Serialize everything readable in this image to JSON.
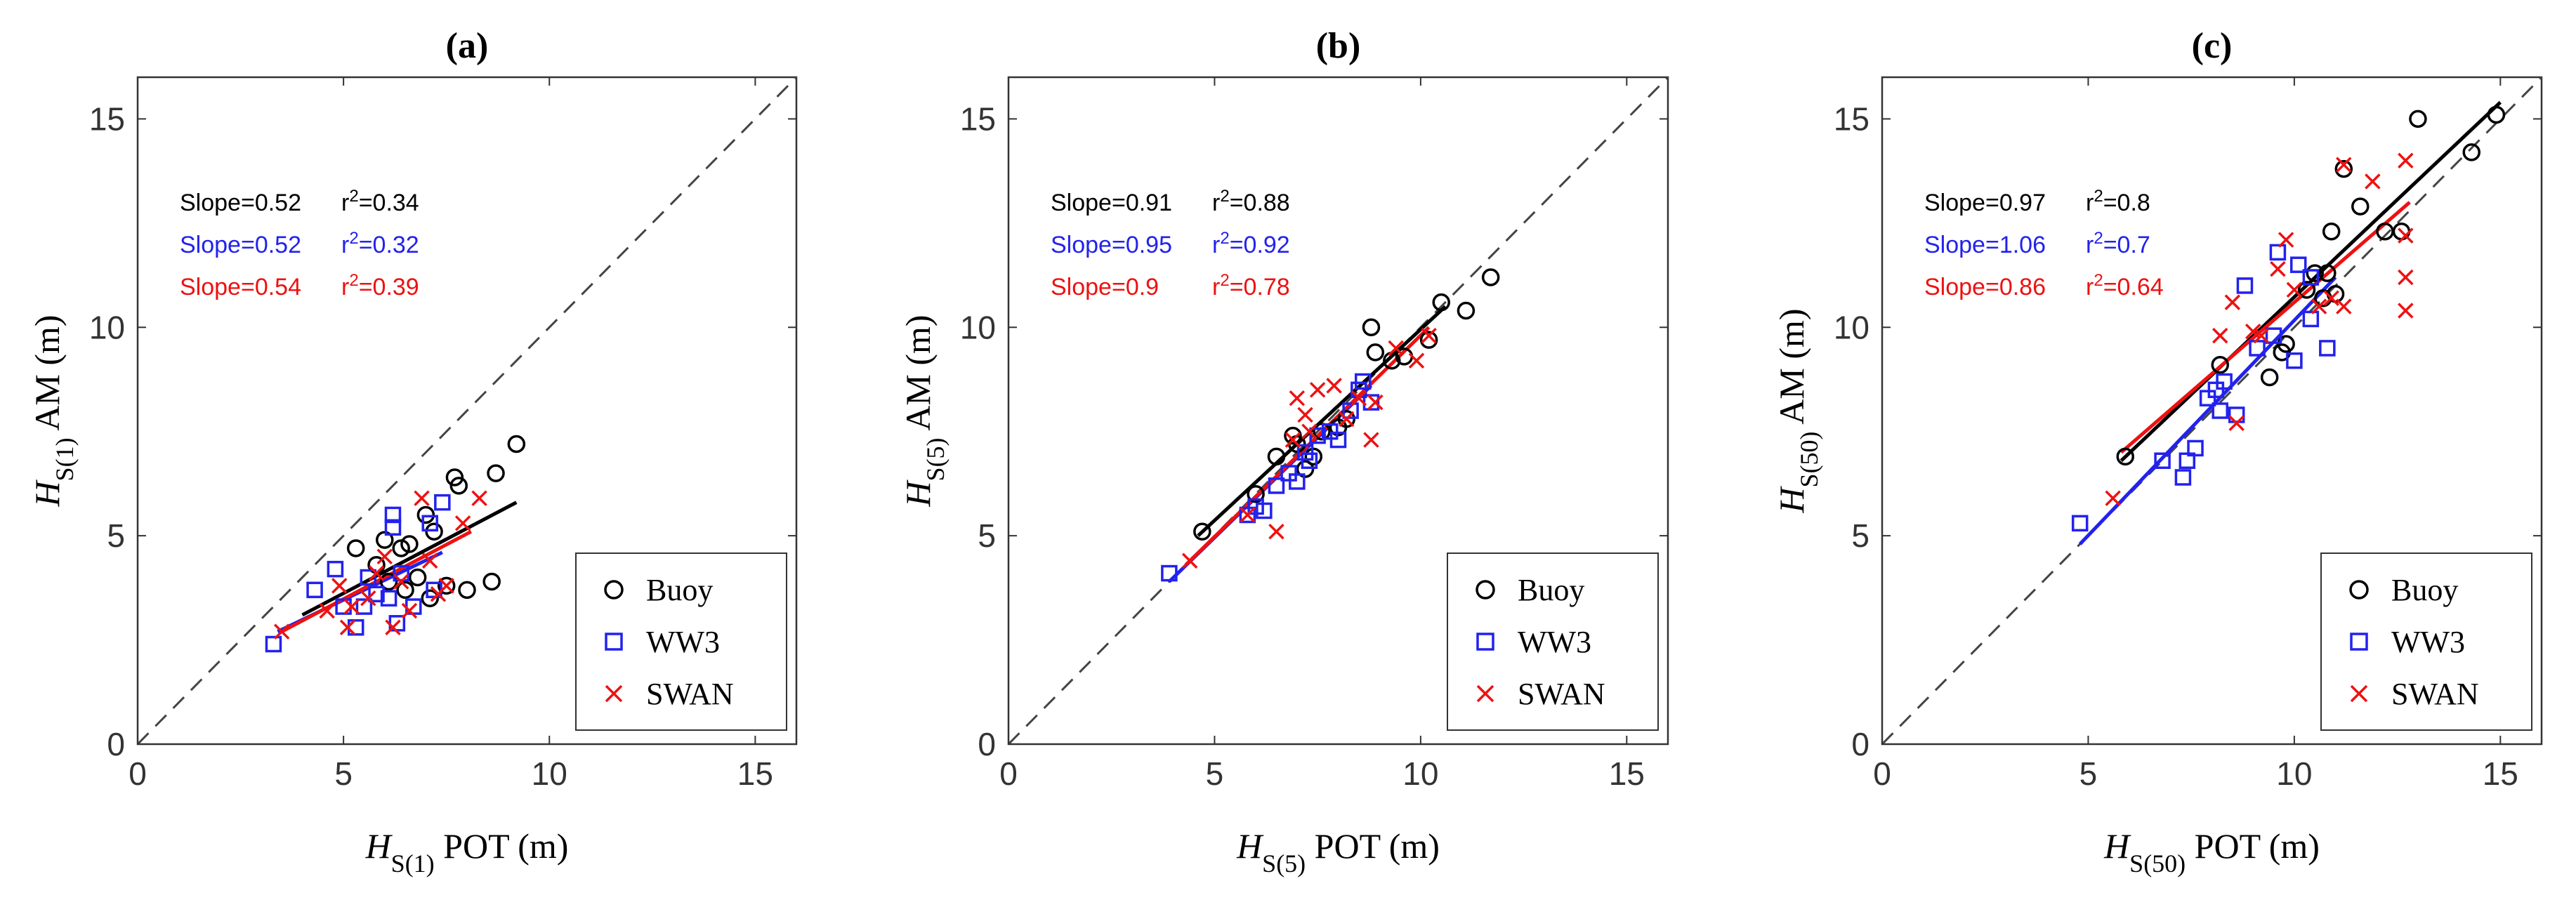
{
  "chart_data": [
    {
      "type": "scatter",
      "panel_title": "(a)",
      "xlabel": {
        "symbol": "H",
        "sub": "S(1)",
        "suffix": " POT (m)"
      },
      "ylabel": {
        "symbol": "H",
        "sub": "S(1)",
        "suffix": " AM (m)"
      },
      "xlim": [
        0,
        16
      ],
      "ylim": [
        0,
        16
      ],
      "xticks": [
        "0",
        "5",
        "10",
        "15"
      ],
      "yticks": [
        "0",
        "5",
        "10",
        "15"
      ],
      "reference_line": "1:1 dashed",
      "legend": [
        "Buoy",
        "WW3",
        "SWAN"
      ],
      "legend_position": "bottom-right",
      "stats": [
        {
          "series": "Buoy",
          "slope": "Slope=0.52",
          "r2_prefix": "r",
          "r2_sup": "2",
          "r2_value": "=0.34"
        },
        {
          "series": "WW3",
          "slope": "Slope=0.52",
          "r2_prefix": "r",
          "r2_sup": "2",
          "r2_value": "=0.32"
        },
        {
          "series": "SWAN",
          "slope": "Slope=0.54",
          "r2_prefix": "r",
          "r2_sup": "2",
          "r2_value": "=0.39"
        }
      ],
      "series": [
        {
          "name": "Buoy",
          "marker": "circle",
          "color": "#000000",
          "fit": [
            [
              4.0,
              3.1
            ],
            [
              9.2,
              5.8
            ]
          ],
          "points": [
            [
              5.3,
              4.7
            ],
            [
              5.8,
              4.3
            ],
            [
              6.0,
              4.9
            ],
            [
              6.4,
              4.7
            ],
            [
              6.6,
              4.8
            ],
            [
              6.1,
              3.9
            ],
            [
              6.5,
              3.7
            ],
            [
              7.0,
              5.5
            ],
            [
              7.2,
              5.1
            ],
            [
              7.5,
              3.8
            ],
            [
              7.7,
              6.4
            ],
            [
              7.8,
              6.2
            ],
            [
              8.0,
              3.7
            ],
            [
              8.6,
              3.9
            ],
            [
              8.7,
              6.5
            ],
            [
              9.2,
              7.2
            ],
            [
              7.1,
              3.5
            ],
            [
              6.8,
              4.0
            ]
          ]
        },
        {
          "name": "WW3",
          "marker": "square",
          "color": "#2222ee",
          "fit": [
            [
              3.4,
              2.7
            ],
            [
              7.4,
              4.6
            ]
          ],
          "points": [
            [
              3.3,
              2.4
            ],
            [
              4.3,
              3.7
            ],
            [
              4.8,
              4.2
            ],
            [
              5.0,
              3.3
            ],
            [
              5.3,
              2.8
            ],
            [
              5.6,
              4.0
            ],
            [
              5.8,
              3.6
            ],
            [
              6.1,
              3.5
            ],
            [
              6.2,
              5.2
            ],
            [
              6.2,
              5.5
            ],
            [
              6.3,
              2.9
            ],
            [
              6.7,
              3.3
            ],
            [
              7.2,
              3.7
            ],
            [
              7.4,
              5.8
            ],
            [
              7.1,
              5.3
            ],
            [
              5.5,
              3.3
            ],
            [
              6.4,
              4.1
            ]
          ]
        },
        {
          "name": "SWAN",
          "marker": "cross",
          "color": "#ee1111",
          "fit": [
            [
              3.5,
              2.7
            ],
            [
              8.1,
              5.1
            ]
          ],
          "points": [
            [
              3.5,
              2.7
            ],
            [
              4.6,
              3.2
            ],
            [
              4.9,
              3.8
            ],
            [
              5.2,
              3.3
            ],
            [
              5.1,
              2.8
            ],
            [
              5.6,
              3.5
            ],
            [
              6.0,
              4.5
            ],
            [
              6.2,
              2.8
            ],
            [
              6.6,
              3.2
            ],
            [
              6.9,
              5.9
            ],
            [
              7.1,
              4.4
            ],
            [
              7.3,
              3.6
            ],
            [
              7.5,
              3.8
            ],
            [
              7.9,
              5.3
            ],
            [
              8.3,
              5.9
            ],
            [
              5.8,
              4.1
            ],
            [
              6.4,
              3.9
            ]
          ]
        }
      ]
    },
    {
      "type": "scatter",
      "panel_title": "(b)",
      "xlabel": {
        "symbol": "H",
        "sub": "S(5)",
        "suffix": " POT (m)"
      },
      "ylabel": {
        "symbol": "H",
        "sub": "S(5)",
        "suffix": " AM (m)"
      },
      "xlim": [
        0,
        16
      ],
      "ylim": [
        0,
        16
      ],
      "xticks": [
        "0",
        "5",
        "10",
        "15"
      ],
      "yticks": [
        "0",
        "5",
        "10",
        "15"
      ],
      "reference_line": "1:1 dashed",
      "legend": [
        "Buoy",
        "WW3",
        "SWAN"
      ],
      "legend_position": "bottom-right",
      "stats": [
        {
          "series": "Buoy",
          "slope": "Slope=0.91",
          "r2_prefix": "r",
          "r2_sup": "2",
          "r2_value": "=0.88"
        },
        {
          "series": "WW3",
          "slope": "Slope=0.95",
          "r2_prefix": "r",
          "r2_sup": "2",
          "r2_value": "=0.92"
        },
        {
          "series": "SWAN",
          "slope": "Slope=0.9",
          "r2_prefix": "r",
          "r2_sup": "2",
          "r2_value": "=0.78"
        }
      ],
      "series": [
        {
          "name": "Buoy",
          "marker": "circle",
          "color": "#000000",
          "fit": [
            [
              4.6,
              5.0
            ],
            [
              10.6,
              10.5
            ]
          ],
          "points": [
            [
              4.7,
              5.1
            ],
            [
              6.0,
              6.0
            ],
            [
              6.5,
              6.9
            ],
            [
              6.9,
              7.4
            ],
            [
              7.2,
              6.6
            ],
            [
              7.4,
              6.9
            ],
            [
              7.6,
              7.5
            ],
            [
              8.0,
              7.6
            ],
            [
              8.2,
              7.8
            ],
            [
              8.8,
              10.0
            ],
            [
              8.9,
              9.4
            ],
            [
              9.3,
              9.2
            ],
            [
              9.6,
              9.3
            ],
            [
              10.2,
              9.7
            ],
            [
              10.5,
              10.6
            ],
            [
              11.1,
              10.4
            ],
            [
              11.7,
              11.2
            ],
            [
              7.0,
              7.2
            ]
          ]
        },
        {
          "name": "WW3",
          "marker": "square",
          "color": "#2222ee",
          "fit": [
            [
              3.9,
              3.9
            ],
            [
              8.8,
              8.6
            ]
          ],
          "points": [
            [
              3.9,
              4.1
            ],
            [
              5.8,
              5.5
            ],
            [
              6.0,
              5.7
            ],
            [
              6.2,
              5.6
            ],
            [
              6.5,
              6.2
            ],
            [
              6.8,
              6.5
            ],
            [
              7.0,
              6.3
            ],
            [
              7.2,
              7.0
            ],
            [
              7.5,
              7.4
            ],
            [
              7.8,
              7.5
            ],
            [
              8.0,
              7.3
            ],
            [
              8.3,
              8.0
            ],
            [
              8.5,
              8.5
            ],
            [
              8.6,
              8.7
            ],
            [
              8.8,
              8.2
            ],
            [
              7.3,
              6.8
            ]
          ]
        },
        {
          "name": "SWAN",
          "marker": "cross",
          "color": "#ee1111",
          "fit": [
            [
              4.3,
              4.3
            ],
            [
              10.2,
              10.0
            ]
          ],
          "points": [
            [
              4.4,
              4.4
            ],
            [
              5.8,
              5.5
            ],
            [
              6.5,
              5.1
            ],
            [
              6.9,
              7.3
            ],
            [
              7.0,
              8.3
            ],
            [
              7.3,
              7.5
            ],
            [
              7.5,
              8.5
            ],
            [
              7.9,
              8.6
            ],
            [
              8.2,
              7.8
            ],
            [
              8.5,
              8.3
            ],
            [
              8.8,
              7.3
            ],
            [
              8.9,
              8.2
            ],
            [
              9.4,
              9.5
            ],
            [
              9.9,
              9.2
            ],
            [
              10.2,
              9.8
            ],
            [
              7.2,
              7.9
            ]
          ]
        }
      ]
    },
    {
      "type": "scatter",
      "panel_title": "(c)",
      "xlabel": {
        "symbol": "H",
        "sub": "S(50)",
        "suffix": " POT (m)"
      },
      "ylabel": {
        "symbol": "H",
        "sub": "S(50)",
        "suffix": " AM (m)"
      },
      "xlim": [
        0,
        16
      ],
      "ylim": [
        0,
        16
      ],
      "xticks": [
        "0",
        "5",
        "10",
        "15"
      ],
      "yticks": [
        "0",
        "5",
        "10",
        "15"
      ],
      "reference_line": "1:1 dashed",
      "legend": [
        "Buoy",
        "WW3",
        "SWAN"
      ],
      "legend_position": "bottom-right",
      "stats": [
        {
          "series": "Buoy",
          "slope": "Slope=0.97",
          "r2_prefix": "r",
          "r2_sup": "2",
          "r2_value": "=0.8"
        },
        {
          "series": "WW3",
          "slope": "Slope=1.06",
          "r2_prefix": "r",
          "r2_sup": "2",
          "r2_value": "=0.7"
        },
        {
          "series": "SWAN",
          "slope": "Slope=0.86",
          "r2_prefix": "r",
          "r2_sup": "2",
          "r2_value": "=0.64"
        }
      ],
      "series": [
        {
          "name": "Buoy",
          "marker": "circle",
          "color": "#000000",
          "fit": [
            [
              5.8,
              6.8
            ],
            [
              15.0,
              15.4
            ]
          ],
          "points": [
            [
              5.9,
              6.9
            ],
            [
              8.2,
              9.1
            ],
            [
              9.4,
              8.8
            ],
            [
              9.8,
              9.6
            ],
            [
              10.3,
              10.9
            ],
            [
              10.5,
              11.3
            ],
            [
              10.7,
              10.7
            ],
            [
              10.8,
              11.3
            ],
            [
              10.9,
              12.3
            ],
            [
              11.0,
              10.8
            ],
            [
              11.2,
              13.8
            ],
            [
              11.6,
              12.9
            ],
            [
              12.2,
              12.3
            ],
            [
              12.6,
              12.3
            ],
            [
              13.0,
              15.0
            ],
            [
              14.3,
              14.2
            ],
            [
              14.9,
              15.1
            ],
            [
              9.7,
              9.4
            ]
          ]
        },
        {
          "name": "WW3",
          "marker": "square",
          "color": "#2222ee",
          "fit": [
            [
              4.8,
              4.8
            ],
            [
              11.0,
              11.2
            ]
          ],
          "points": [
            [
              4.8,
              5.3
            ],
            [
              6.8,
              6.8
            ],
            [
              7.3,
              6.4
            ],
            [
              7.4,
              6.8
            ],
            [
              7.6,
              7.1
            ],
            [
              7.9,
              8.3
            ],
            [
              8.1,
              8.5
            ],
            [
              8.3,
              8.7
            ],
            [
              8.6,
              7.9
            ],
            [
              8.8,
              11.0
            ],
            [
              9.1,
              9.5
            ],
            [
              9.5,
              9.8
            ],
            [
              9.6,
              11.8
            ],
            [
              10.0,
              9.2
            ],
            [
              10.1,
              11.5
            ],
            [
              10.4,
              11.2
            ],
            [
              10.8,
              9.5
            ],
            [
              10.4,
              10.2
            ],
            [
              8.2,
              8.0
            ]
          ]
        },
        {
          "name": "SWAN",
          "marker": "cross",
          "color": "#ee1111",
          "fit": [
            [
              5.8,
              7.0
            ],
            [
              12.8,
              13.0
            ]
          ],
          "points": [
            [
              5.6,
              5.9
            ],
            [
              8.2,
              9.8
            ],
            [
              8.5,
              10.6
            ],
            [
              8.6,
              7.7
            ],
            [
              9.0,
              9.9
            ],
            [
              9.2,
              9.8
            ],
            [
              9.6,
              11.4
            ],
            [
              9.8,
              12.1
            ],
            [
              10.0,
              10.9
            ],
            [
              10.6,
              10.5
            ],
            [
              11.2,
              10.5
            ],
            [
              11.2,
              13.9
            ],
            [
              11.9,
              13.5
            ],
            [
              12.7,
              14.0
            ],
            [
              12.7,
              12.2
            ],
            [
              12.7,
              11.2
            ],
            [
              12.7,
              10.4
            ],
            [
              10.9,
              10.7
            ]
          ]
        }
      ]
    }
  ]
}
